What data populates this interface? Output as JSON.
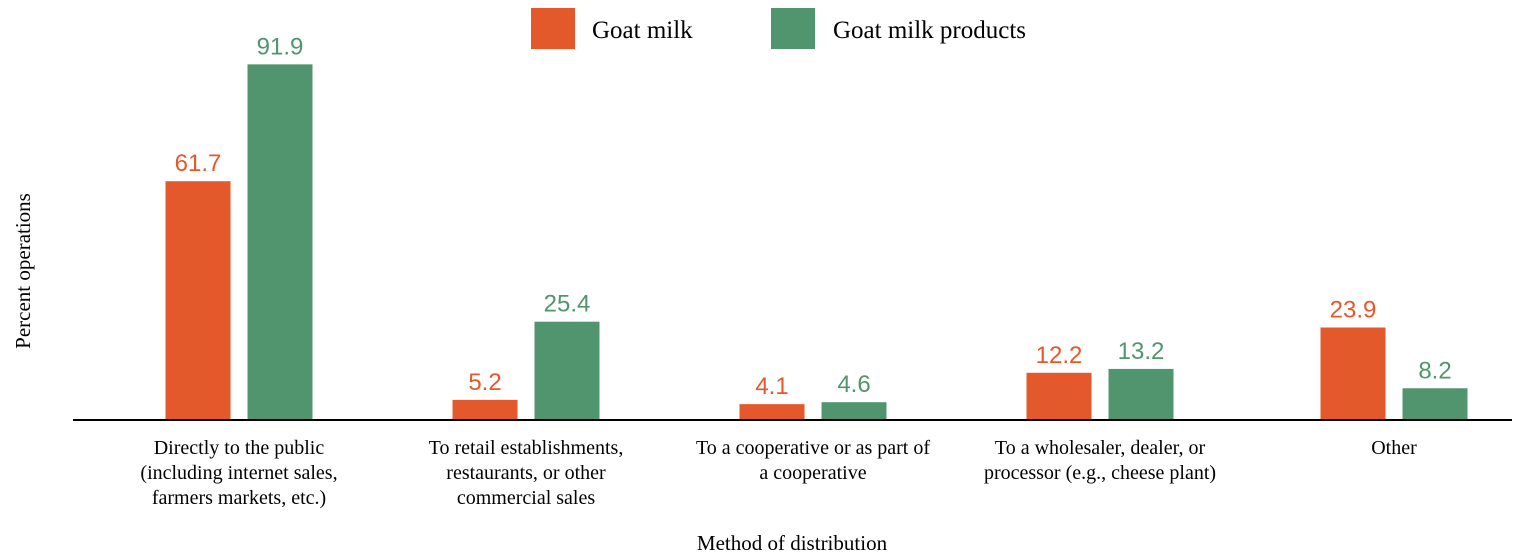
{
  "chart_data": {
    "type": "bar",
    "categories": [
      [
        "Directly to the public",
        "(including internet sales,",
        "farmers markets, etc.)"
      ],
      [
        "To retail establishments,",
        "restaurants, or other",
        "commercial sales"
      ],
      [
        "To a cooperative or as part of",
        "a cooperative"
      ],
      [
        "To a wholesaler, dealer, or",
        "processor (e.g., cheese plant)"
      ],
      [
        "Other"
      ]
    ],
    "series": [
      {
        "name": "Goat milk",
        "color": "#e4592b",
        "values": [
          61.7,
          5.2,
          4.1,
          12.2,
          23.9
        ]
      },
      {
        "name": "Goat milk products",
        "color": "#51956f",
        "values": [
          91.9,
          25.4,
          4.6,
          13.2,
          8.2
        ]
      }
    ],
    "xlabel": "Method of distribution",
    "ylabel": "Percent operations",
    "ylim": [
      0,
      100
    ],
    "grid": false,
    "legend": "top-center",
    "data_labels": true
  }
}
